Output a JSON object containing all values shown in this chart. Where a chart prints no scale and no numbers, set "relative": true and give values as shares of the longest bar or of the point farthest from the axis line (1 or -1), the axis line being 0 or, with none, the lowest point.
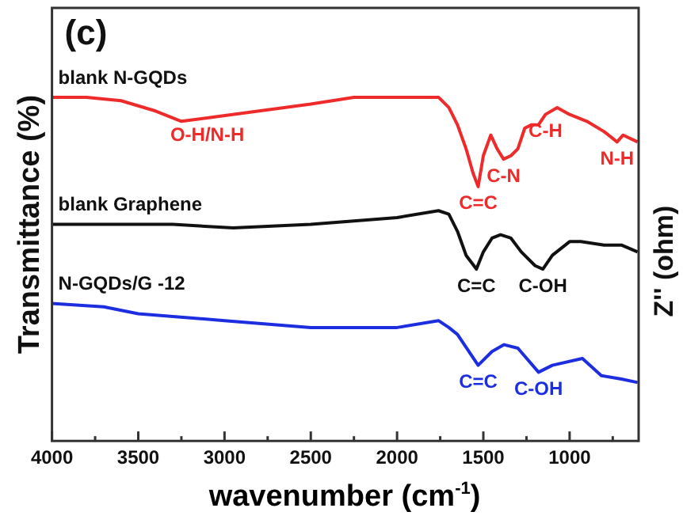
{
  "chart_data": {
    "type": "line",
    "relative": true,
    "xlabel": "wavenumber (cm$^{-1}$)",
    "ylabel": "Transmittance (%)",
    "xlim": [
      4000,
      600
    ],
    "xticks": [
      4000,
      {
        "value": 3750,
        "label": null
      },
      3500,
      {
        "value": 3250,
        "label": null
      },
      3000,
      {
        "value": 2750,
        "label": null
      },
      2500,
      {
        "value": 2250,
        "label": null
      },
      2000,
      {
        "value": 1750,
        "label": null
      },
      1500,
      {
        "value": 1250,
        "label": null
      },
      1000,
      {
        "value": 750,
        "label": null
      }
    ],
    "grid": false,
    "legend": false,
    "marker": "none",
    "line_style": "solid",
    "tick_labels": "x",
    "series": [
      {
        "name": "blank N-GQDs",
        "color": "#ee2a2a",
        "x": [
          4000,
          3800,
          3600,
          3400,
          3250,
          3100,
          2800,
          2500,
          2250,
          1760,
          1700,
          1650,
          1600,
          1560,
          1530,
          1500,
          1457,
          1420,
          1383,
          1340,
          1300,
          1260,
          1220,
          1180,
          1140,
          1072,
          1000,
          900,
          800,
          725,
          690,
          606
        ],
        "values": [
          1.0,
          1.0,
          0.99,
          0.96,
          0.93,
          0.94,
          0.96,
          0.98,
          1.0,
          1.0,
          0.97,
          0.92,
          0.85,
          0.78,
          0.74,
          0.83,
          0.89,
          0.85,
          0.82,
          0.83,
          0.85,
          0.91,
          0.92,
          0.92,
          0.95,
          0.97,
          0.95,
          0.93,
          0.9,
          0.87,
          0.89,
          0.87
        ]
      },
      {
        "name": "blank Graphene",
        "color": "#111111",
        "x": [
          4000,
          3700,
          3300,
          2950,
          2500,
          2000,
          1760,
          1700,
          1650,
          1600,
          1540,
          1500,
          1450,
          1400,
          1340,
          1280,
          1200,
          1155,
          1100,
          1000,
          935,
          800,
          700,
          606
        ],
        "values": [
          0.63,
          0.63,
          0.63,
          0.62,
          0.63,
          0.65,
          0.67,
          0.66,
          0.61,
          0.54,
          0.5,
          0.55,
          0.59,
          0.6,
          0.59,
          0.55,
          0.51,
          0.5,
          0.54,
          0.58,
          0.58,
          0.57,
          0.57,
          0.55
        ]
      },
      {
        "name": "N-GQDs/G -12",
        "color": "#1c2ee0",
        "x": [
          4000,
          3700,
          3500,
          3000,
          2500,
          2000,
          1760,
          1700,
          1650,
          1530,
          1450,
          1380,
          1300,
          1180,
          1100,
          926,
          816,
          700,
          606
        ],
        "values": [
          0.4,
          0.39,
          0.37,
          0.35,
          0.33,
          0.33,
          0.35,
          0.33,
          0.31,
          0.22,
          0.26,
          0.28,
          0.27,
          0.2,
          0.22,
          0.24,
          0.19,
          0.18,
          0.17
        ]
      }
    ],
    "annotations": [
      "(c)",
      "Z'' (ohm)",
      {
        "text": "O-H/N-H",
        "x": 3100,
        "y": 0.94
      },
      {
        "text": "C=C",
        "x": 1530,
        "y": 0.74
      },
      {
        "text": "C-N",
        "x": 1383,
        "y": 0.82
      },
      {
        "text": "C-H",
        "x": 1140,
        "y": 0.95
      },
      {
        "text": "N-H",
        "x": 725,
        "y": 0.87
      },
      {
        "text": "C=C",
        "x": 1540,
        "y": 0.5
      },
      {
        "text": "C-OH",
        "x": 1155,
        "y": 0.5
      },
      {
        "text": "C=C",
        "x": 1530,
        "y": 0.22
      },
      {
        "text": "C-OH",
        "x": 1180,
        "y": 0.2
      }
    ]
  }
}
